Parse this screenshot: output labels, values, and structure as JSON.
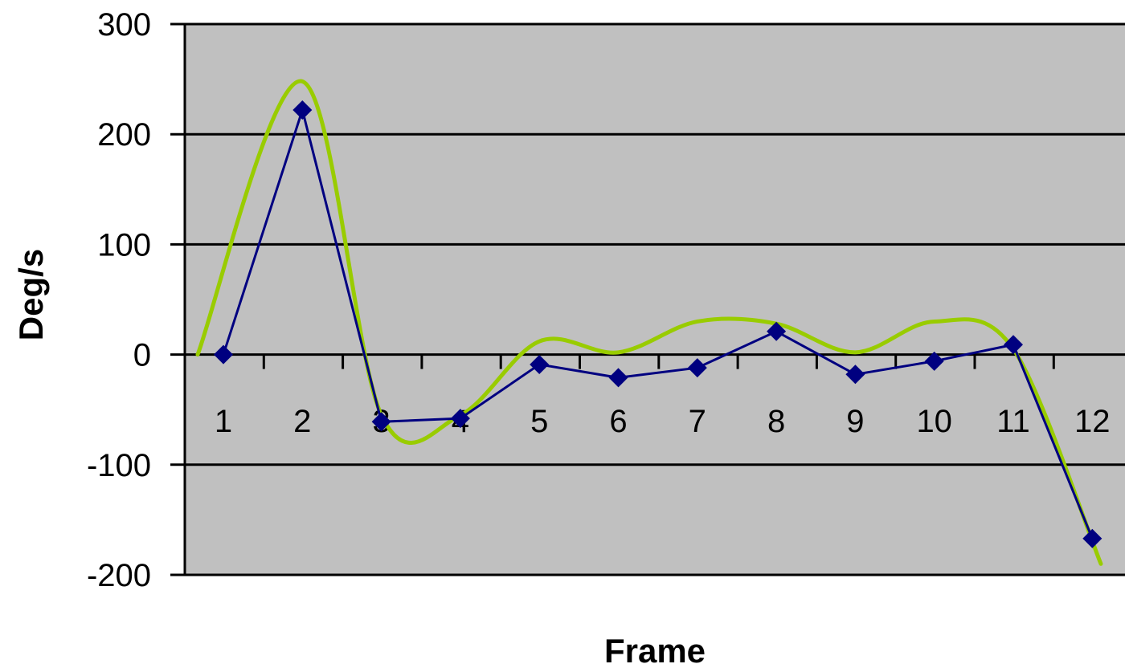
{
  "chart_data": {
    "type": "line",
    "title": "",
    "xlabel": "Frame",
    "ylabel": "Deg/s",
    "categories": [
      "1",
      "2",
      "3",
      "4",
      "5",
      "6",
      "7",
      "8",
      "9",
      "10",
      "11",
      "12"
    ],
    "ylim": [
      -200,
      300
    ],
    "yticks": [
      300,
      200,
      100,
      0,
      -100,
      -200
    ],
    "ytick_labels": [
      "300",
      "200",
      "100",
      "0",
      "-100",
      "-200"
    ],
    "grid": true,
    "legend": "none",
    "series": [
      {
        "values": [
          0,
          222,
          -61,
          -58,
          -9,
          -21,
          -12,
          21,
          -18,
          -6,
          9,
          -167
        ],
        "color": "#000080",
        "marker": "diamond",
        "style": "straight"
      }
    ],
    "trendline": {
      "color": "#99cc00",
      "style": "smooth"
    },
    "colors": {
      "plot_background": "#c0c0c0",
      "gridline": "#000000"
    }
  }
}
